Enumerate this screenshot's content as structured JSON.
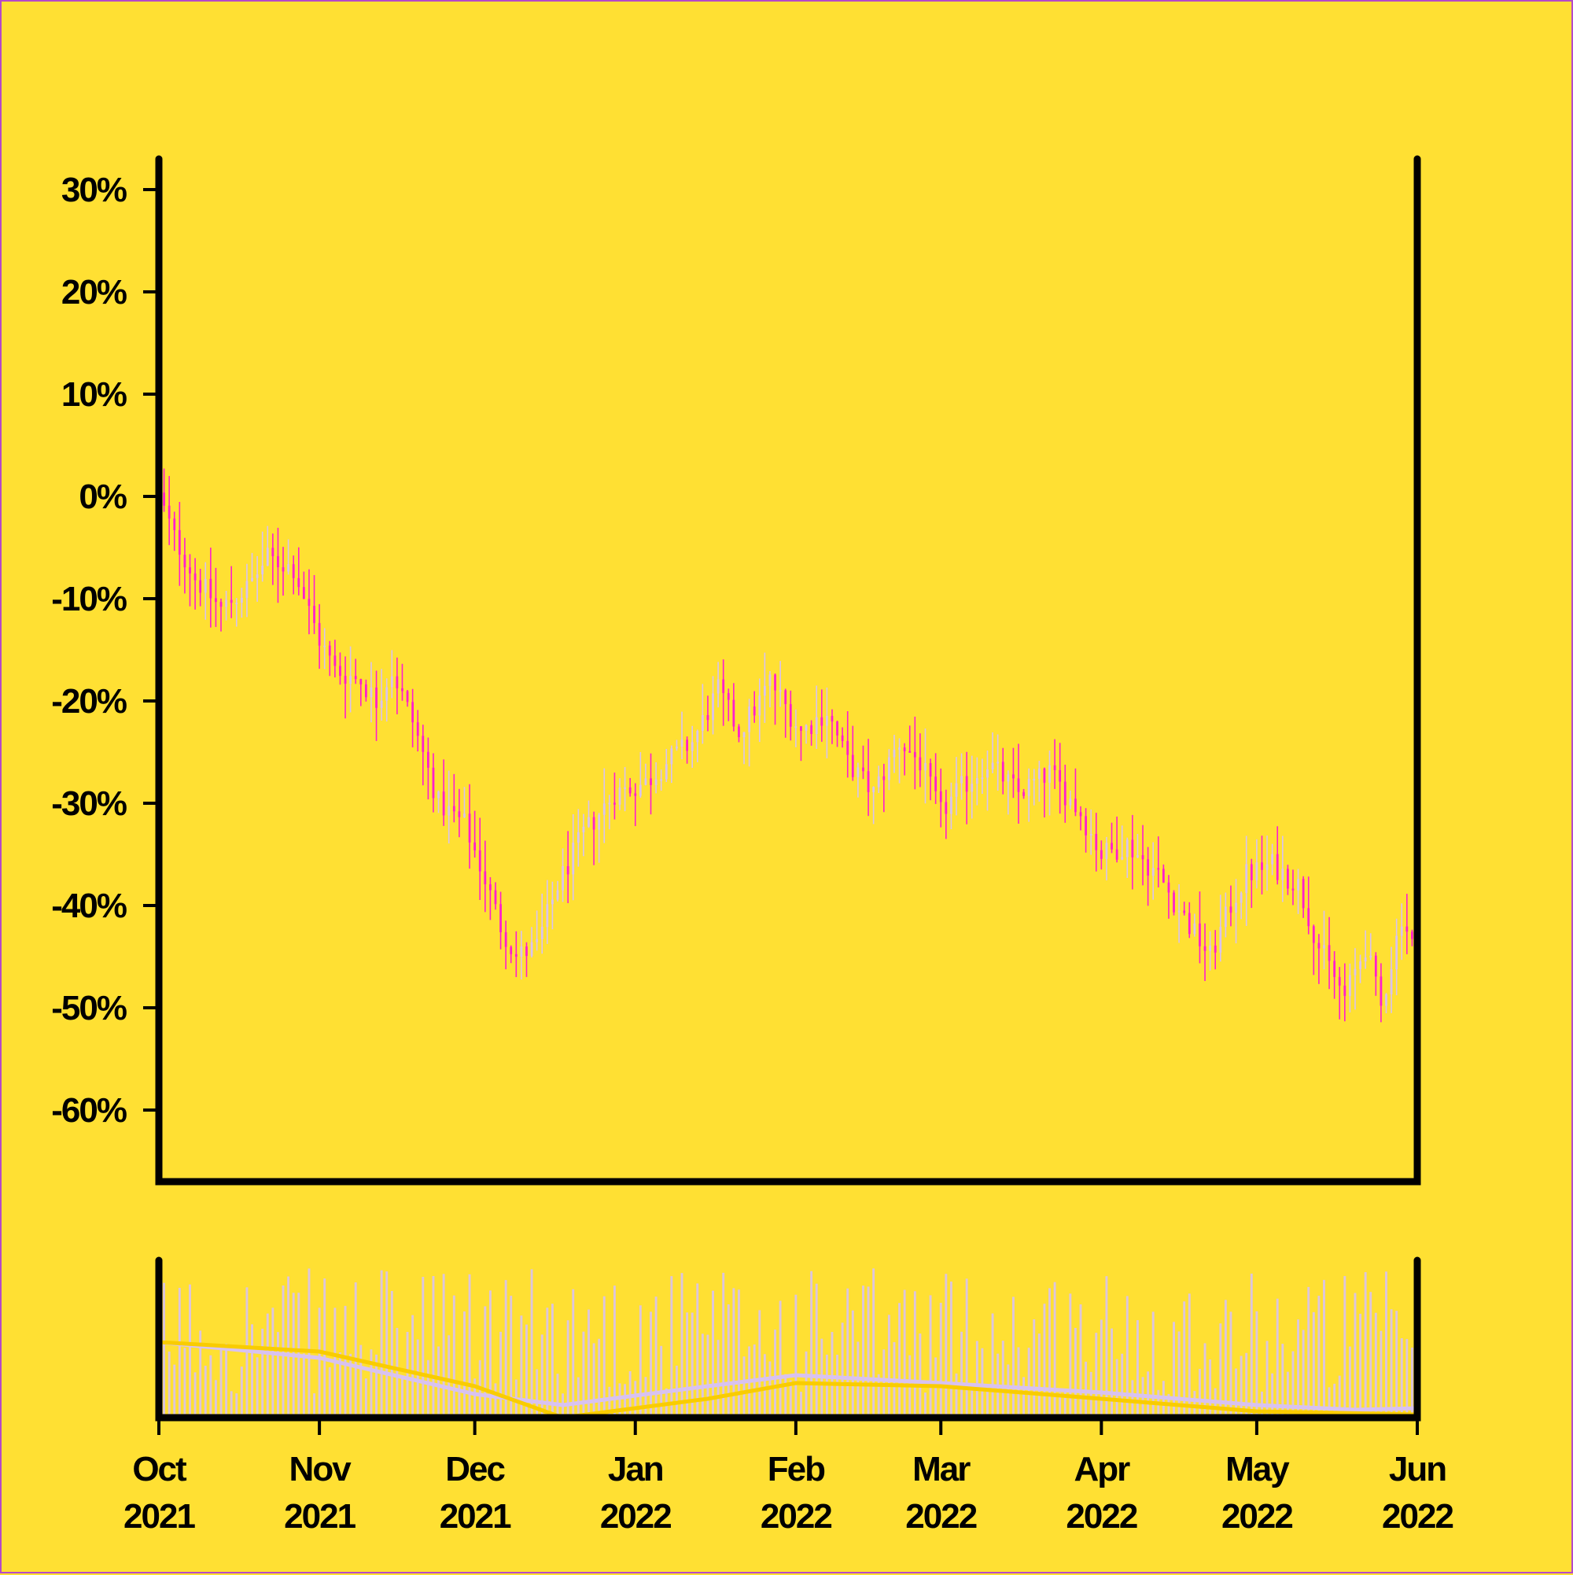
{
  "colors": {
    "background": "#FFE033",
    "axis": "#000000",
    "up_candle": "#D8C2F0",
    "down_candle": "#FF1DCE",
    "volume_bar": "#D8C2F0",
    "volume_ma_fast": "#D8C2F0",
    "volume_ma_slow": "#F9CC00",
    "border": "#B54AC8"
  },
  "chart_data": {
    "type": "candlestick",
    "title": "",
    "xlabel": "",
    "ylabel": "",
    "y_axis": {
      "unit": "percent",
      "ylim": [
        -67,
        33
      ],
      "ticks": [
        30,
        20,
        10,
        0,
        -10,
        -20,
        -30,
        -40,
        -50,
        -60
      ],
      "tick_labels": [
        "30%",
        "20%",
        "10%",
        "0%",
        "-10%",
        "-20%",
        "-30%",
        "-40%",
        "-50%",
        "-60%"
      ]
    },
    "x_axis": {
      "range": [
        "2021-10-01",
        "2022-06-01"
      ],
      "ticks": [
        {
          "date": "2021-10-01",
          "month": "Oct",
          "year": "2021"
        },
        {
          "date": "2021-11-01",
          "month": "Nov",
          "year": "2021"
        },
        {
          "date": "2021-12-01",
          "month": "Dec",
          "year": "2021"
        },
        {
          "date": "2022-01-01",
          "month": "Jan",
          "year": "2022"
        },
        {
          "date": "2022-02-01",
          "month": "Feb",
          "year": "2022"
        },
        {
          "date": "2022-03-01",
          "month": "Mar",
          "year": "2022"
        },
        {
          "date": "2022-04-01",
          "month": "Apr",
          "year": "2022"
        },
        {
          "date": "2022-05-01",
          "month": "May",
          "year": "2022"
        },
        {
          "date": "2022-06-01",
          "month": "Jun",
          "year": "2022"
        }
      ]
    },
    "close_path": [
      [
        "2021-10-01",
        0
      ],
      [
        "2021-10-04",
        -4
      ],
      [
        "2021-10-08",
        -8
      ],
      [
        "2021-10-13",
        -11
      ],
      [
        "2021-10-18",
        -9
      ],
      [
        "2021-10-22",
        -6
      ],
      [
        "2021-10-27",
        -7
      ],
      [
        "2021-11-01",
        -14
      ],
      [
        "2021-11-04",
        -17
      ],
      [
        "2021-11-09",
        -18
      ],
      [
        "2021-11-12",
        -20
      ],
      [
        "2021-11-15",
        -17
      ],
      [
        "2021-11-19",
        -22
      ],
      [
        "2021-11-24",
        -30
      ],
      [
        "2021-11-29",
        -32
      ],
      [
        "2021-12-02",
        -36
      ],
      [
        "2021-12-06",
        -42
      ],
      [
        "2021-12-09",
        -45
      ],
      [
        "2021-12-13",
        -44
      ],
      [
        "2021-12-17",
        -38
      ],
      [
        "2021-12-22",
        -33
      ],
      [
        "2021-12-28",
        -29
      ],
      [
        "2022-01-03",
        -28
      ],
      [
        "2022-01-07",
        -26
      ],
      [
        "2022-01-12",
        -24
      ],
      [
        "2022-01-17",
        -19
      ],
      [
        "2022-01-21",
        -23
      ],
      [
        "2022-01-25",
        -20
      ],
      [
        "2022-01-27",
        -18
      ],
      [
        "2022-02-02",
        -23
      ],
      [
        "2022-02-07",
        -21
      ],
      [
        "2022-02-11",
        -26
      ],
      [
        "2022-02-16",
        -29
      ],
      [
        "2022-02-21",
        -24
      ],
      [
        "2022-02-25",
        -26
      ],
      [
        "2022-03-01",
        -31
      ],
      [
        "2022-03-04",
        -29
      ],
      [
        "2022-03-10",
        -26
      ],
      [
        "2022-03-16",
        -29
      ],
      [
        "2022-03-22",
        -27
      ],
      [
        "2022-03-28",
        -31
      ],
      [
        "2022-04-01",
        -35
      ],
      [
        "2022-04-06",
        -34
      ],
      [
        "2022-04-12",
        -37
      ],
      [
        "2022-04-18",
        -42
      ],
      [
        "2022-04-22",
        -45
      ],
      [
        "2022-04-26",
        -40
      ],
      [
        "2022-04-29",
        -37
      ],
      [
        "2022-05-04",
        -36
      ],
      [
        "2022-05-09",
        -38
      ],
      [
        "2022-05-13",
        -44
      ],
      [
        "2022-05-18",
        -49
      ],
      [
        "2022-05-22",
        -44
      ],
      [
        "2022-05-25",
        -50
      ],
      [
        "2022-05-29",
        -41
      ],
      [
        "2022-06-01",
        -45
      ]
    ],
    "volume": {
      "ylim": [
        0,
        100
      ],
      "moving_averages": [
        {
          "points": [
            [
              "2021-10-01",
              48
            ],
            [
              "2021-11-01",
              38
            ],
            [
              "2021-12-01",
              15
            ],
            [
              "2021-12-18",
              8
            ],
            [
              "2022-01-15",
              20
            ],
            [
              "2022-02-01",
              27
            ],
            [
              "2022-03-01",
              22
            ],
            [
              "2022-04-01",
              16
            ],
            [
              "2022-05-01",
              8
            ],
            [
              "2022-05-20",
              5
            ],
            [
              "2022-06-01",
              6
            ]
          ]
        },
        {
          "points": [
            [
              "2021-10-01",
              48
            ],
            [
              "2021-11-01",
              42
            ],
            [
              "2021-12-01",
              20
            ],
            [
              "2021-12-18",
              0
            ],
            [
              "2022-01-15",
              12
            ],
            [
              "2022-02-01",
              22
            ],
            [
              "2022-03-01",
              20
            ],
            [
              "2022-04-01",
              12
            ],
            [
              "2022-05-01",
              4
            ],
            [
              "2022-06-01",
              2
            ]
          ]
        }
      ]
    }
  }
}
